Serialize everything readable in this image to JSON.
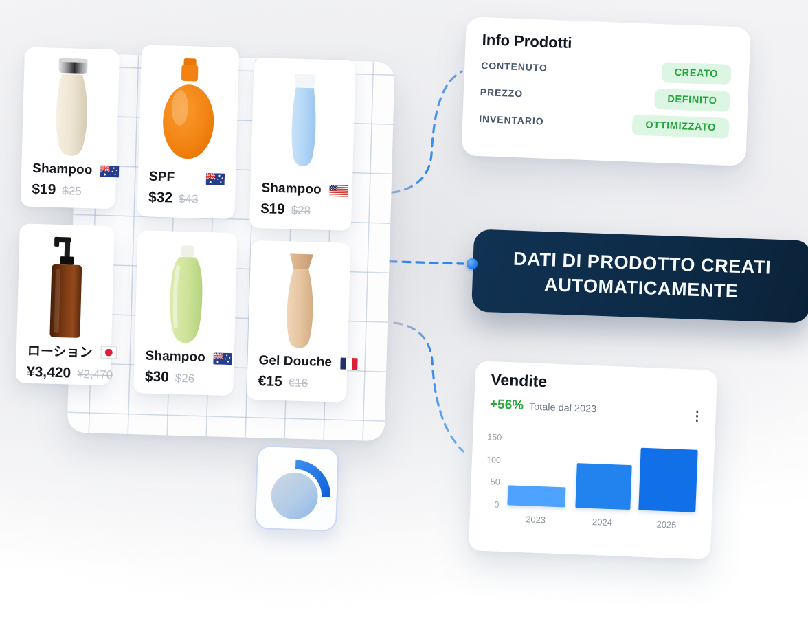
{
  "colors": {
    "accent_blue": "#2e86f0",
    "banner_navy": "#0d2b47",
    "badge_green_text": "#23a43c",
    "badge_green_bg": "#ddf6e3",
    "delta_green": "#27a83a",
    "grid_line": "#94aacc"
  },
  "products": [
    {
      "name": "Shampoo",
      "country": "Australia",
      "price": "$19",
      "old_price": "$25"
    },
    {
      "name": "SPF",
      "country": "Australia",
      "price": "$32",
      "old_price": "$43"
    },
    {
      "name": "Shampoo",
      "country": "United States",
      "price": "$19",
      "old_price": "$28"
    },
    {
      "name": "ローション",
      "country": "Japan",
      "price": "¥3,420",
      "old_price": "¥2,470"
    },
    {
      "name": "Shampoo",
      "country": "Australia",
      "price": "$30",
      "old_price": "$26"
    },
    {
      "name": "Gel Douche",
      "country": "France",
      "price": "€15",
      "old_price": "€16"
    }
  ],
  "info_panel": {
    "title": "Info Prodotti",
    "rows": [
      {
        "label": "CONTENUTO",
        "badge": "CREATO"
      },
      {
        "label": "PREZZO",
        "badge": "DEFINITO"
      },
      {
        "label": "INVENTARIO",
        "badge": "OTTIMIZZATO"
      }
    ]
  },
  "banner": {
    "line1": "DATI DI PRODOTTO CREATI",
    "line2": "AUTOMATICAMENTE"
  },
  "sales_panel": {
    "title": "Vendite",
    "delta": "+56%",
    "subtitle": "Totale dal 2023",
    "kebab_icon": "⋮"
  },
  "chart_data": {
    "type": "bar",
    "categories": [
      "2023",
      "2024",
      "2025"
    ],
    "values": [
      45,
      100,
      140
    ],
    "title": "Vendite",
    "xlabel": "",
    "ylabel": "",
    "ylim": [
      0,
      150
    ],
    "yticks": [
      0,
      50,
      100,
      150
    ],
    "bar_colors": [
      "#4da3ff",
      "#2383ee",
      "#1170e8"
    ],
    "grid": false,
    "legend": false
  }
}
